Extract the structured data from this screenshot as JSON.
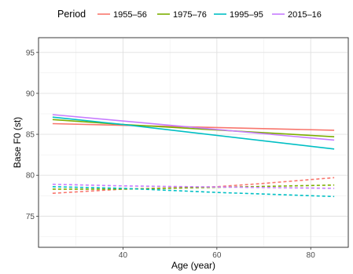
{
  "chart_data": {
    "type": "line",
    "xlabel": "Age (year)",
    "ylabel": "Base F0 (st)",
    "xlim": [
      22,
      88
    ],
    "ylim": [
      71.2,
      96.8
    ],
    "x_ticks": [
      40,
      60,
      80
    ],
    "y_ticks": [
      75,
      80,
      85,
      90,
      95
    ],
    "grid": true,
    "legend": {
      "title": "Period",
      "placement": "top"
    },
    "series": [
      {
        "name": "1955–56",
        "color": "#F8766D",
        "solid": [
          [
            25,
            86.3
          ],
          [
            85,
            85.5
          ]
        ],
        "dashed": [
          [
            25,
            77.8
          ],
          [
            40,
            78.3
          ],
          [
            60,
            78.6
          ],
          [
            70,
            79.0
          ],
          [
            85,
            79.7
          ]
        ]
      },
      {
        "name": "1975–76",
        "color": "#7CAE00",
        "solid": [
          [
            25,
            86.8
          ],
          [
            40,
            86.2
          ],
          [
            85,
            84.7
          ]
        ],
        "dashed": [
          [
            25,
            78.3
          ],
          [
            40,
            78.3
          ],
          [
            85,
            78.8
          ]
        ]
      },
      {
        "name": "1995–95",
        "color": "#00BFC4",
        "solid": [
          [
            25,
            87.1
          ],
          [
            40,
            86.2
          ],
          [
            85,
            83.2
          ]
        ],
        "dashed": [
          [
            25,
            78.6
          ],
          [
            40,
            78.4
          ],
          [
            60,
            77.9
          ],
          [
            85,
            77.4
          ]
        ]
      },
      {
        "name": "2015–16",
        "color": "#C77CFF",
        "solid": [
          [
            25,
            87.4
          ],
          [
            85,
            84.3
          ]
        ],
        "dashed": [
          [
            25,
            78.9
          ],
          [
            40,
            78.7
          ],
          [
            85,
            78.4
          ]
        ]
      }
    ]
  }
}
